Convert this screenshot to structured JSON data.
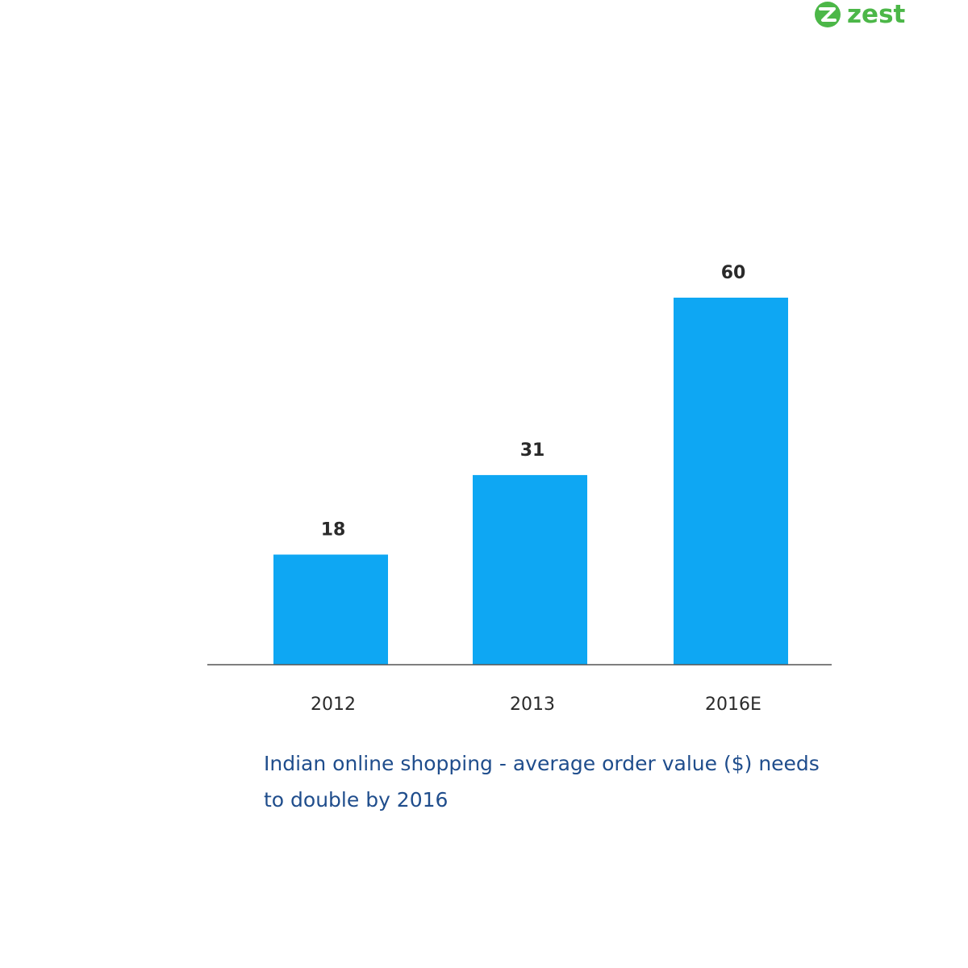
{
  "brand": {
    "name": "zest",
    "logo_icon": "zest-z-icon",
    "color": "#4cb748"
  },
  "chart_data": {
    "type": "bar",
    "title": "",
    "categories": [
      "2012",
      "2013",
      "2016E"
    ],
    "series": [
      {
        "values": [
          18,
          31,
          60
        ]
      }
    ],
    "data_labels": [
      "18",
      "31",
      "60"
    ],
    "ylim": [
      0,
      60
    ],
    "xlabel": "",
    "ylabel": "",
    "grid": false,
    "bar_color": "#0ea7f3",
    "axis_color": "#555555",
    "label_color": "#2a2a2a"
  },
  "caption": {
    "text": "Indian online shopping - average order value ($) needs to double by 2016",
    "color": "#1f4d8c"
  }
}
